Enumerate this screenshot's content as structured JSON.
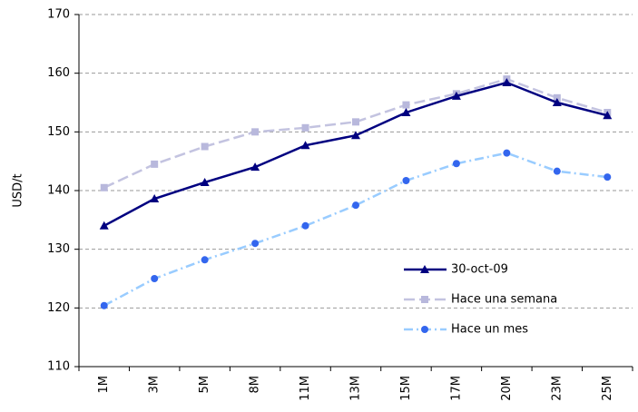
{
  "chart_data": {
    "type": "line",
    "y_label": "USD/t",
    "categories": [
      "1M",
      "3M",
      "5M",
      "8M",
      "11M",
      "13M",
      "15M",
      "17M",
      "20M",
      "23M",
      "25M"
    ],
    "series": [
      {
        "name": "30-oct-09",
        "color": "#000080",
        "marker": "triangle",
        "dash": "solid",
        "values": [
          134,
          138.6,
          141.4,
          144,
          147.7,
          149.4,
          153.3,
          156.1,
          158.4,
          155,
          152.8
        ]
      },
      {
        "name": "Hace una semana",
        "color": "#c3c3e0",
        "marker_color": "#b8b8dc",
        "marker": "square",
        "dash": "dashed",
        "values": [
          140.5,
          144.5,
          147.5,
          150,
          150.7,
          151.7,
          154.6,
          156.5,
          159,
          155.8,
          153.3
        ]
      },
      {
        "name": "Hace un mes",
        "color": "#99ccff",
        "marker_color": "#3366ee",
        "marker": "circle",
        "dash": "dashdot",
        "values": [
          120.4,
          125,
          128.2,
          131,
          134,
          137.5,
          141.7,
          144.6,
          146.4,
          143.3,
          142.3
        ]
      }
    ],
    "ylim": [
      110,
      170
    ],
    "yticks": [
      110,
      120,
      130,
      140,
      150,
      160,
      170
    ],
    "grid": true
  }
}
